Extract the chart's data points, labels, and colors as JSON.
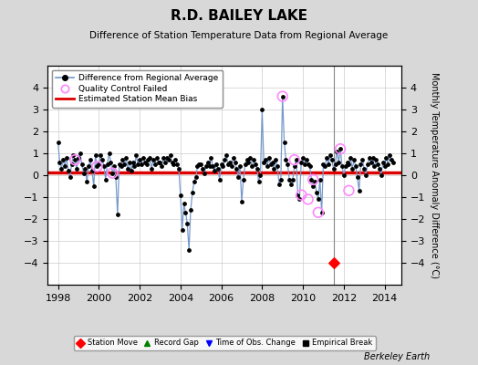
{
  "title": "R.D. BAILEY LAKE",
  "subtitle": "Difference of Station Temperature Data from Regional Average",
  "ylabel": "Monthly Temperature Anomaly Difference (°C)",
  "xlabel_bottom": "Berkeley Earth",
  "xlim": [
    1997.5,
    2014.83
  ],
  "ylim": [
    -5,
    5
  ],
  "yticks": [
    -4,
    -3,
    -2,
    -1,
    0,
    1,
    2,
    3,
    4
  ],
  "xticks": [
    1998,
    2000,
    2002,
    2004,
    2006,
    2008,
    2010,
    2012,
    2014
  ],
  "bias_line_y": 0.12,
  "station_move_x": 2011.5,
  "station_move_y": -4.0,
  "vline_x": 2011.5,
  "bg_color": "#d8d8d8",
  "plot_bg_color": "#ffffff",
  "line_color": "#7799cc",
  "dot_color": "#000000",
  "bias_color": "#dd0000",
  "qc_fail_color": "#ff88ff",
  "time": [
    1998.0,
    1998.083,
    1998.167,
    1998.25,
    1998.333,
    1998.417,
    1998.5,
    1998.583,
    1998.667,
    1998.75,
    1998.833,
    1998.917,
    1999.0,
    1999.083,
    1999.167,
    1999.25,
    1999.333,
    1999.417,
    1999.5,
    1999.583,
    1999.667,
    1999.75,
    1999.833,
    1999.917,
    2000.0,
    2000.083,
    2000.167,
    2000.25,
    2000.333,
    2000.417,
    2000.5,
    2000.583,
    2000.667,
    2000.75,
    2000.833,
    2000.917,
    2001.0,
    2001.083,
    2001.167,
    2001.25,
    2001.333,
    2001.417,
    2001.5,
    2001.583,
    2001.667,
    2001.75,
    2001.833,
    2001.917,
    2002.0,
    2002.083,
    2002.167,
    2002.25,
    2002.333,
    2002.417,
    2002.5,
    2002.583,
    2002.667,
    2002.75,
    2002.833,
    2002.917,
    2003.0,
    2003.083,
    2003.167,
    2003.25,
    2003.333,
    2003.417,
    2003.5,
    2003.583,
    2003.667,
    2003.75,
    2003.833,
    2003.917,
    2004.0,
    2004.083,
    2004.167,
    2004.25,
    2004.333,
    2004.417,
    2004.5,
    2004.583,
    2004.667,
    2004.75,
    2004.833,
    2004.917,
    2005.0,
    2005.083,
    2005.167,
    2005.25,
    2005.333,
    2005.417,
    2005.5,
    2005.583,
    2005.667,
    2005.75,
    2005.833,
    2005.917,
    2006.0,
    2006.083,
    2006.167,
    2006.25,
    2006.333,
    2006.417,
    2006.5,
    2006.583,
    2006.667,
    2006.75,
    2006.833,
    2006.917,
    2007.0,
    2007.083,
    2007.167,
    2007.25,
    2007.333,
    2007.417,
    2007.5,
    2007.583,
    2007.667,
    2007.75,
    2007.833,
    2007.917,
    2008.0,
    2008.083,
    2008.167,
    2008.25,
    2008.333,
    2008.417,
    2008.5,
    2008.583,
    2008.667,
    2008.75,
    2008.833,
    2008.917,
    2009.0,
    2009.083,
    2009.167,
    2009.25,
    2009.333,
    2009.417,
    2009.5,
    2009.583,
    2009.667,
    2009.75,
    2009.833,
    2009.917,
    2010.0,
    2010.083,
    2010.167,
    2010.25,
    2010.333,
    2010.417,
    2010.5,
    2010.583,
    2010.667,
    2010.75,
    2010.833,
    2010.917,
    2011.0,
    2011.083,
    2011.167,
    2011.25,
    2011.333,
    2011.417,
    2011.5,
    2011.583,
    2011.667,
    2011.75,
    2011.833,
    2011.917,
    2012.0,
    2012.083,
    2012.167,
    2012.25,
    2012.333,
    2012.417,
    2012.5,
    2012.583,
    2012.667,
    2012.75,
    2012.833,
    2012.917,
    2013.0,
    2013.083,
    2013.167,
    2013.25,
    2013.333,
    2013.417,
    2013.5,
    2013.583,
    2013.667,
    2013.75,
    2013.833,
    2013.917,
    2014.0,
    2014.083,
    2014.167,
    2014.25,
    2014.333,
    2014.417
  ],
  "values": [
    1.5,
    0.6,
    0.3,
    0.7,
    0.4,
    0.8,
    0.2,
    -0.1,
    0.5,
    0.9,
    0.7,
    0.3,
    0.8,
    1.0,
    0.5,
    0.1,
    0.3,
    -0.3,
    0.4,
    0.7,
    0.2,
    -0.5,
    0.9,
    0.4,
    0.5,
    0.9,
    0.7,
    0.4,
    -0.2,
    0.5,
    1.0,
    0.6,
    0.1,
    0.4,
    -0.1,
    -1.8,
    0.5,
    0.4,
    0.7,
    0.5,
    0.8,
    0.3,
    0.6,
    0.2,
    0.6,
    0.4,
    0.9,
    0.5,
    0.7,
    0.5,
    0.8,
    0.6,
    0.5,
    0.7,
    0.8,
    0.3,
    0.7,
    0.5,
    0.8,
    0.6,
    0.6,
    0.4,
    0.8,
    0.6,
    0.8,
    0.7,
    0.9,
    0.6,
    0.5,
    0.7,
    0.5,
    0.3,
    -0.9,
    -2.5,
    -1.3,
    -1.7,
    -2.2,
    -3.4,
    -1.6,
    -0.8,
    -0.3,
    -0.1,
    0.4,
    0.5,
    0.5,
    0.3,
    0.1,
    0.4,
    0.6,
    0.4,
    0.8,
    0.4,
    0.2,
    0.5,
    0.3,
    -0.2,
    0.5,
    0.4,
    0.7,
    0.9,
    0.5,
    0.6,
    0.4,
    0.8,
    0.6,
    0.3,
    -0.1,
    0.4,
    -1.2,
    -0.2,
    0.5,
    0.7,
    0.6,
    0.8,
    0.4,
    0.7,
    0.5,
    0.3,
    -0.3,
    0.0,
    3.0,
    0.6,
    0.7,
    0.4,
    0.8,
    0.5,
    0.6,
    0.3,
    0.7,
    0.4,
    -0.4,
    -0.2,
    3.6,
    1.5,
    0.7,
    0.5,
    -0.2,
    -0.4,
    -0.2,
    0.4,
    0.7,
    -0.9,
    -1.1,
    0.6,
    0.8,
    0.5,
    0.7,
    0.5,
    0.4,
    -0.2,
    -0.5,
    -0.3,
    -0.8,
    -1.1,
    -0.2,
    -1.7,
    0.5,
    0.4,
    0.8,
    0.5,
    0.9,
    0.7,
    0.3,
    0.5,
    1.1,
    0.6,
    1.2,
    0.4,
    0.0,
    0.4,
    0.6,
    0.5,
    0.8,
    0.3,
    0.7,
    0.4,
    -0.1,
    -0.7,
    0.5,
    0.7,
    0.3,
    0.0,
    0.5,
    0.8,
    0.6,
    0.8,
    0.4,
    0.7,
    0.5,
    0.3,
    0.0,
    0.6,
    0.4,
    0.8,
    0.5,
    0.9,
    0.7,
    0.6
  ],
  "qc_fail_times": [
    1998.833,
    1999.917,
    2000.667,
    2009.0,
    2009.583,
    2009.917,
    2010.25,
    2010.5,
    2010.75,
    2011.833,
    2012.25
  ],
  "qc_fail_values": [
    0.7,
    0.4,
    0.1,
    3.6,
    0.7,
    -0.9,
    -1.1,
    -0.2,
    -1.7,
    1.2,
    -0.7
  ]
}
